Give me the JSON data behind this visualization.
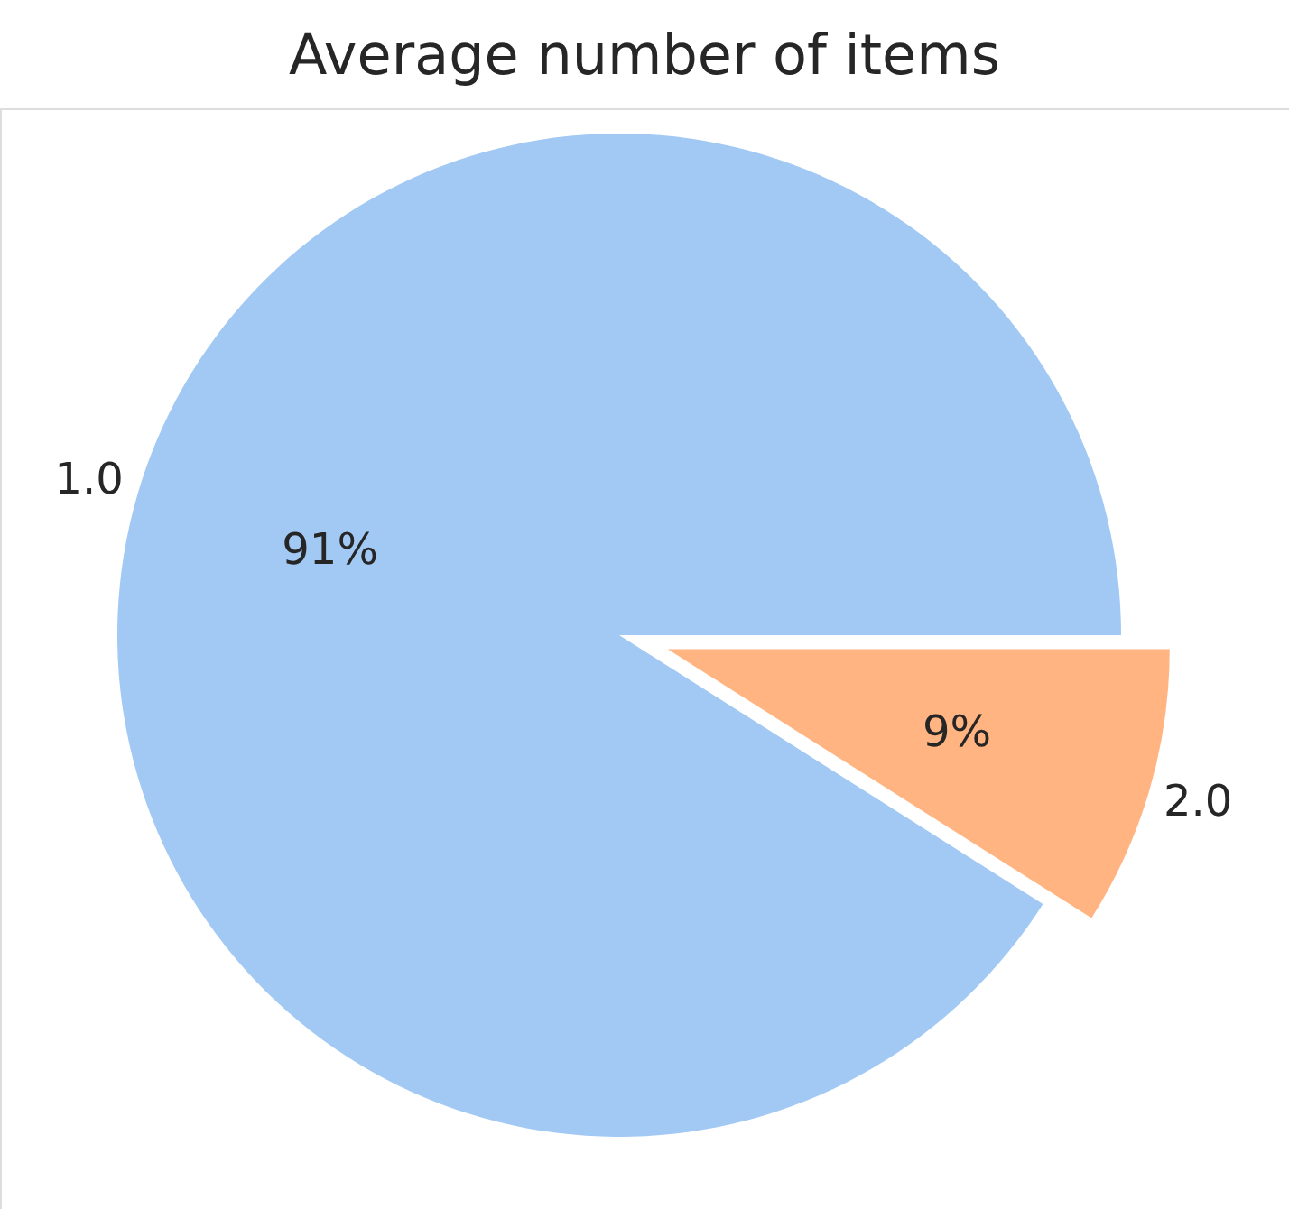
{
  "chart_data": {
    "type": "pie",
    "title": "Average number of items",
    "categories": [
      "1.0",
      "2.0"
    ],
    "values": [
      91,
      9
    ],
    "colors": [
      "#a1c9f4",
      "#ffb482"
    ],
    "value_labels": [
      "91%",
      "9%"
    ]
  }
}
